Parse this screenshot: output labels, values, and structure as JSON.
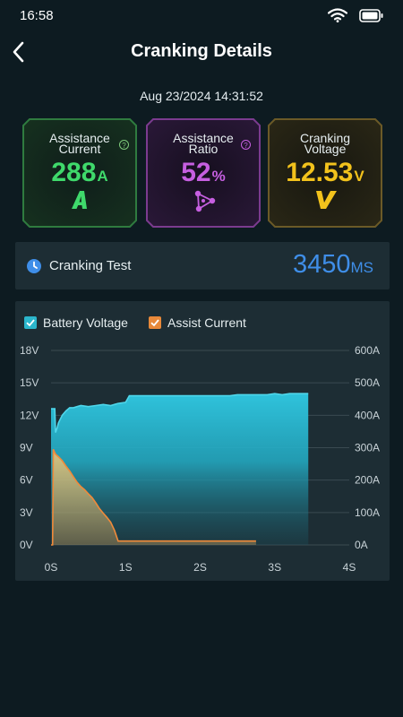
{
  "status_bar": {
    "time": "16:58"
  },
  "header": {
    "title": "Cranking Details"
  },
  "timestamp": "Aug 23/2024 14:31:52",
  "cards": [
    {
      "label_line1": "Assistance",
      "label_line2": "Current",
      "value": "288",
      "unit": "A",
      "color": "#3fd96b",
      "border": "#2f7b3f"
    },
    {
      "label_line1": "Assistance",
      "label_line2": "Ratio",
      "value": "52",
      "unit": "%",
      "color": "#c65fe0",
      "border": "#7b3b8f"
    },
    {
      "label_line1": "Cranking",
      "label_line2": "Voltage",
      "value": "12.53",
      "unit": "V",
      "color": "#f2c21c",
      "border": "#6b5a27"
    }
  ],
  "cranking_test": {
    "label": "Cranking Test",
    "value": "3450",
    "unit": "MS"
  },
  "chart_data": {
    "type": "area",
    "legend": [
      {
        "name": "Battery Voltage",
        "color": "#2bb6cc",
        "checked": true
      },
      {
        "name": "Assist Current",
        "color": "#e8893a",
        "checked": true
      }
    ],
    "x_ticks": [
      "0S",
      "1S",
      "2S",
      "3S",
      "4S"
    ],
    "xlim": [
      0,
      4
    ],
    "y_left_ticks": [
      "0V",
      "3V",
      "6V",
      "9V",
      "12V",
      "15V",
      "18V"
    ],
    "y_left_lim": [
      0,
      18
    ],
    "y_right_ticks": [
      "0A",
      "100A",
      "200A",
      "300A",
      "400A",
      "500A",
      "600A"
    ],
    "y_right_lim": [
      0,
      600
    ],
    "grid": true,
    "series": [
      {
        "name": "Battery Voltage",
        "axis": "left",
        "x": [
          0,
          0.05,
          0.06,
          0.08,
          0.1,
          0.15,
          0.2,
          0.25,
          0.3,
          0.35,
          0.4,
          0.5,
          0.6,
          0.7,
          0.8,
          0.9,
          1.0,
          1.05,
          1.1,
          1.2,
          1.5,
          1.8,
          2.0,
          2.2,
          2.4,
          2.5,
          2.7,
          2.9,
          3.0,
          3.1,
          3.2,
          3.4,
          3.45,
          3.451
        ],
        "y": [
          12.6,
          12.6,
          10.4,
          10.8,
          11.3,
          12.0,
          12.4,
          12.7,
          12.7,
          12.8,
          12.9,
          12.8,
          12.9,
          13.0,
          12.9,
          13.1,
          13.2,
          13.8,
          13.8,
          13.8,
          13.8,
          13.8,
          13.8,
          13.8,
          13.8,
          13.9,
          13.9,
          13.9,
          14.0,
          13.9,
          14.0,
          14.0,
          14.0,
          0
        ]
      },
      {
        "name": "Assist Current",
        "axis": "right",
        "x": [
          0,
          0.02,
          0.03,
          0.06,
          0.1,
          0.15,
          0.2,
          0.25,
          0.3,
          0.35,
          0.4,
          0.45,
          0.5,
          0.55,
          0.6,
          0.65,
          0.7,
          0.75,
          0.8,
          0.85,
          0.9,
          1.0,
          1.5,
          2.0,
          2.5,
          2.75
        ],
        "y": [
          0,
          0,
          295,
          280,
          272,
          260,
          243,
          228,
          210,
          193,
          180,
          170,
          158,
          146,
          130,
          112,
          98,
          85,
          70,
          45,
          12,
          12,
          12,
          12,
          12,
          12
        ]
      }
    ]
  }
}
